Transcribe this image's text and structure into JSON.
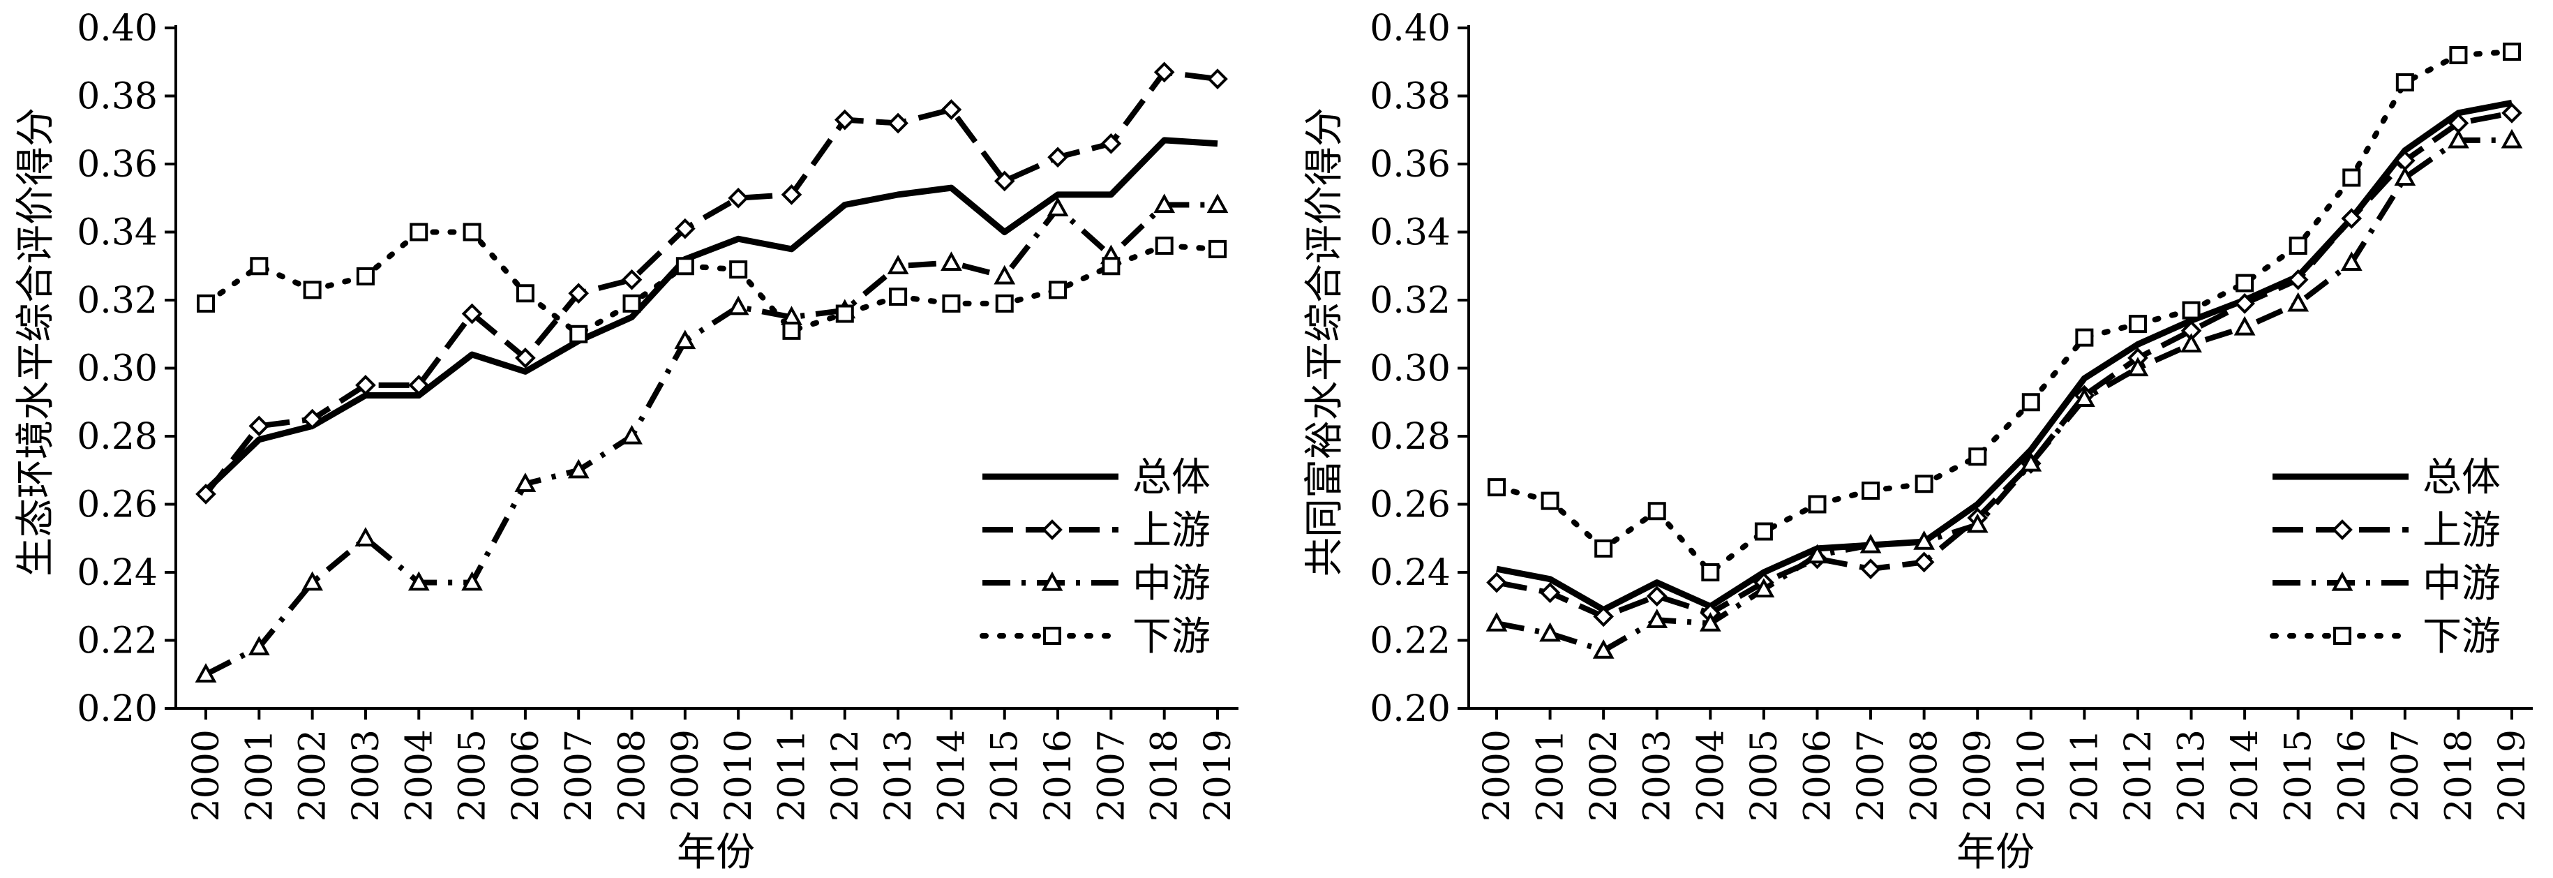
{
  "chart_data": [
    {
      "type": "line",
      "title": "",
      "xlabel": "年份",
      "ylabel": "生态环境水平综合评价得分",
      "ylim": [
        0.2,
        0.4
      ],
      "yticks": [
        "0.20",
        "0.22",
        "0.24",
        "0.26",
        "0.28",
        "0.30",
        "0.32",
        "0.34",
        "0.36",
        "0.38",
        "0.40"
      ],
      "categories": [
        "2000",
        "2001",
        "2002",
        "2003",
        "2004",
        "2005",
        "2006",
        "2007",
        "2008",
        "2009",
        "2010",
        "2011",
        "2012",
        "2013",
        "2014",
        "2015",
        "2016",
        "2007",
        "2018",
        "2019"
      ],
      "grid": false,
      "legend_position": "bottom-right",
      "series": [
        {
          "name": "总体",
          "style": "solid",
          "marker": "none",
          "values": [
            0.264,
            0.279,
            0.283,
            0.292,
            0.292,
            0.304,
            0.299,
            0.308,
            0.315,
            0.332,
            0.338,
            0.335,
            0.348,
            0.351,
            0.353,
            0.34,
            0.351,
            0.351,
            0.367,
            0.366
          ]
        },
        {
          "name": "上游",
          "style": "dashed",
          "marker": "diamond",
          "values": [
            0.263,
            0.283,
            0.285,
            0.295,
            0.295,
            0.316,
            0.303,
            0.322,
            0.326,
            0.341,
            0.35,
            0.351,
            0.373,
            0.372,
            0.376,
            0.355,
            0.362,
            0.366,
            0.387,
            0.385
          ]
        },
        {
          "name": "中游",
          "style": "dashdot",
          "marker": "triangle",
          "values": [
            0.21,
            0.218,
            0.237,
            0.25,
            0.237,
            0.237,
            0.266,
            0.27,
            0.28,
            0.308,
            0.318,
            0.315,
            0.317,
            0.33,
            0.331,
            0.327,
            0.347,
            0.333,
            0.348,
            0.348
          ]
        },
        {
          "name": "下游",
          "style": "dotted",
          "marker": "square",
          "values": [
            0.319,
            0.33,
            0.323,
            0.327,
            0.34,
            0.34,
            0.322,
            0.31,
            0.319,
            0.33,
            0.329,
            0.311,
            0.316,
            0.321,
            0.319,
            0.319,
            0.323,
            0.33,
            0.336,
            0.335
          ]
        }
      ]
    },
    {
      "type": "line",
      "title": "",
      "xlabel": "年份",
      "ylabel": "共同富裕水平综合评价得分",
      "ylim": [
        0.2,
        0.4
      ],
      "yticks": [
        "0.20",
        "0.22",
        "0.24",
        "0.26",
        "0.28",
        "0.30",
        "0.32",
        "0.34",
        "0.36",
        "0.38",
        "0.40"
      ],
      "categories": [
        "2000",
        "2001",
        "2002",
        "2003",
        "2004",
        "2005",
        "2006",
        "2007",
        "2008",
        "2009",
        "2010",
        "2011",
        "2012",
        "2013",
        "2014",
        "2015",
        "2016",
        "2007",
        "2018",
        "2019"
      ],
      "grid": false,
      "legend_position": "bottom-right",
      "series": [
        {
          "name": "总体",
          "style": "solid",
          "marker": "none",
          "values": [
            0.241,
            0.238,
            0.229,
            0.237,
            0.23,
            0.24,
            0.247,
            0.248,
            0.249,
            0.26,
            0.276,
            0.297,
            0.307,
            0.314,
            0.32,
            0.327,
            0.344,
            0.364,
            0.375,
            0.378
          ]
        },
        {
          "name": "上游",
          "style": "dashed",
          "marker": "diamond",
          "values": [
            0.237,
            0.234,
            0.227,
            0.233,
            0.228,
            0.237,
            0.244,
            0.241,
            0.243,
            0.256,
            0.272,
            0.292,
            0.303,
            0.311,
            0.319,
            0.326,
            0.344,
            0.361,
            0.372,
            0.375
          ]
        },
        {
          "name": "中游",
          "style": "dashdot",
          "marker": "triangle",
          "values": [
            0.225,
            0.222,
            0.217,
            0.226,
            0.225,
            0.235,
            0.245,
            0.248,
            0.249,
            0.254,
            0.272,
            0.291,
            0.3,
            0.307,
            0.312,
            0.319,
            0.331,
            0.356,
            0.367,
            0.367
          ]
        },
        {
          "name": "下游",
          "style": "dotted",
          "marker": "square",
          "values": [
            0.265,
            0.261,
            0.247,
            0.258,
            0.24,
            0.252,
            0.26,
            0.264,
            0.266,
            0.274,
            0.29,
            0.309,
            0.313,
            0.317,
            0.325,
            0.336,
            0.356,
            0.384,
            0.392,
            0.393
          ]
        }
      ]
    }
  ]
}
